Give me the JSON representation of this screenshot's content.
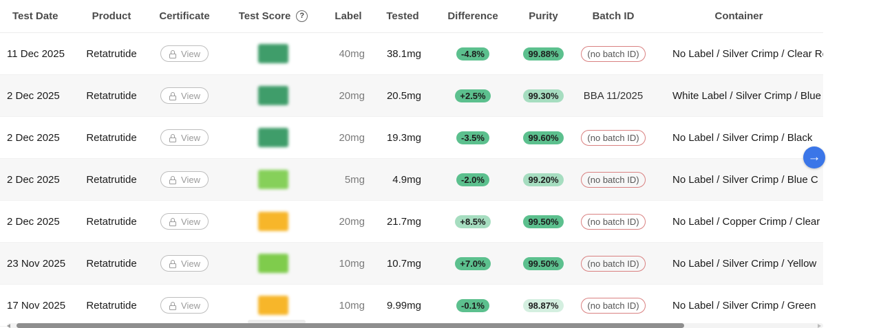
{
  "headers": {
    "test_date": "Test Date",
    "product": "Product",
    "certificate": "Certificate",
    "test_score": "Test Score",
    "label": "Label",
    "tested": "Tested",
    "difference": "Difference",
    "purity": "Purity",
    "batch_id": "Batch ID",
    "container": "Container"
  },
  "help_glyph": "?",
  "view_label": "View",
  "next_glyph": "→",
  "rows": [
    {
      "date": "11 Dec 2025",
      "product": "Retatrutide",
      "score_color": "#3f9d6a",
      "label": "40mg",
      "tested": "38.1mg",
      "difference": "-4.8%",
      "diff_bg": "#5cc08e",
      "purity": "99.88%",
      "purity_bg": "#5cc08e",
      "batch": "(no batch ID)",
      "batch_is_pill": true,
      "container": "No Label / Silver Crimp / Clear Re"
    },
    {
      "date": "2 Dec 2025",
      "product": "Retatrutide",
      "score_color": "#3f9d6a",
      "label": "20mg",
      "tested": "20.5mg",
      "difference": "+2.5%",
      "diff_bg": "#5cc08e",
      "purity": "99.30%",
      "purity_bg": "#a6ddc0",
      "batch": "BBA 11/2025",
      "batch_is_pill": false,
      "container": "White Label / Silver Crimp / Blue"
    },
    {
      "date": "2 Dec 2025",
      "product": "Retatrutide",
      "score_color": "#3f9d6a",
      "label": "20mg",
      "tested": "19.3mg",
      "difference": "-3.5%",
      "diff_bg": "#5cc08e",
      "purity": "99.60%",
      "purity_bg": "#5cc08e",
      "batch": "(no batch ID)",
      "batch_is_pill": true,
      "container": "No Label / Silver Crimp / Black"
    },
    {
      "date": "2 Dec 2025",
      "product": "Retatrutide",
      "score_color": "#86d05a",
      "label": "5mg",
      "tested": "4.9mg",
      "difference": "-2.0%",
      "diff_bg": "#5cc08e",
      "purity": "99.20%",
      "purity_bg": "#a6ddc0",
      "batch": "(no batch ID)",
      "batch_is_pill": true,
      "container": "No Label / Silver Crimp / Blue C"
    },
    {
      "date": "2 Dec 2025",
      "product": "Retatrutide",
      "score_color": "#f7b62a",
      "label": "20mg",
      "tested": "21.7mg",
      "difference": "+8.5%",
      "diff_bg": "#a6ddc0",
      "purity": "99.50%",
      "purity_bg": "#5cc08e",
      "batch": "(no batch ID)",
      "batch_is_pill": true,
      "container": "No Label / Copper Crimp / Clear"
    },
    {
      "date": "23 Nov 2025",
      "product": "Retatrutide",
      "score_color": "#7fcc4c",
      "label": "10mg",
      "tested": "10.7mg",
      "difference": "+7.0%",
      "diff_bg": "#5cc08e",
      "purity": "99.50%",
      "purity_bg": "#5cc08e",
      "batch": "(no batch ID)",
      "batch_is_pill": true,
      "container": "No Label / Silver Crimp / Yellow"
    },
    {
      "date": "17 Nov 2025",
      "product": "Retatrutide",
      "score_color": "#f7b62a",
      "label": "10mg",
      "tested": "9.99mg",
      "difference": "-0.1%",
      "diff_bg": "#5cc08e",
      "purity": "98.87%",
      "purity_bg": "#d4efe0",
      "batch": "(no batch ID)",
      "batch_is_pill": true,
      "container": "No Label / Silver Crimp / Green"
    }
  ]
}
